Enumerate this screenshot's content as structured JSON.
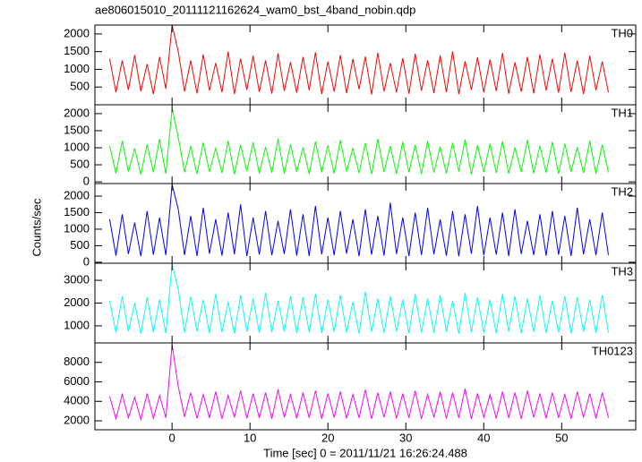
{
  "chart_data": {
    "type": "line",
    "title": "ae806015010_20111121162624_wam0_bst_4band_nobin.qdp",
    "xlabel": "Time [sec] 0 = 2011/11/21 16:26:24.488",
    "ylabel": "Counts/sec",
    "xlim": [
      -9.9,
      59.5
    ],
    "xticks": [
      0,
      10,
      20,
      30,
      40,
      50
    ],
    "x": [
      -8,
      -7.2,
      -6.4,
      -5.6,
      -4.8,
      -4,
      -3.2,
      -2.4,
      -1.6,
      -0.8,
      0,
      0.8,
      1.6,
      2.4,
      3.2,
      4,
      4.8,
      5.6,
      6.4,
      7.2,
      8,
      8.8,
      9.6,
      10.4,
      11.2,
      12,
      12.8,
      13.6,
      14.4,
      15.2,
      16,
      16.8,
      17.6,
      18.4,
      19.2,
      20,
      20.8,
      21.6,
      22.4,
      23.2,
      24,
      24.8,
      25.6,
      26.4,
      27.2,
      28,
      28.8,
      29.6,
      30.4,
      31.2,
      32,
      32.8,
      33.6,
      34.4,
      35.2,
      36,
      36.8,
      37.6,
      38.4,
      39.2,
      40,
      40.8,
      41.6,
      42.4,
      43.2,
      44,
      44.8,
      45.6,
      46.4,
      47.2,
      48,
      48.8,
      49.6,
      50.4,
      51.2,
      52,
      52.8,
      53.6,
      54.4,
      55.2,
      56
    ],
    "series": [
      {
        "name": "TH0",
        "color": "#ff0000",
        "ylim": [
          0,
          2250
        ],
        "yticks": [
          500,
          1000,
          1500,
          2000
        ],
        "values": [
          1300,
          350,
          1250,
          420,
          1400,
          380,
          1150,
          300,
          1350,
          450,
          2250,
          1500,
          380,
          1250,
          320,
          1420,
          400,
          1180,
          350,
          1500,
          300,
          1300,
          420,
          1380,
          360,
          1250,
          310,
          1450,
          390,
          1200,
          340,
          1350,
          410,
          1480,
          300,
          1220,
          370,
          1400,
          330,
          1290,
          440,
          1360,
          290,
          1470,
          380,
          1180,
          350,
          1320,
          310,
          1440,
          400,
          1260,
          330,
          1390,
          360,
          1510,
          300,
          1230,
          420,
          1340,
          350,
          1280,
          390,
          1460,
          310,
          1200,
          370,
          1350,
          320,
          1420,
          400,
          1300,
          340,
          1470,
          360,
          1250,
          300,
          1380,
          410,
          1220,
          350
        ]
      },
      {
        "name": "TH1",
        "color": "#00ff00",
        "ylim": [
          -50,
          2260
        ],
        "yticks": [
          0,
          500,
          1000,
          1500,
          2000
        ],
        "values": [
          1050,
          250,
          1200,
          300,
          980,
          220,
          1100,
          280,
          1250,
          240,
          2150,
          1300,
          280,
          1050,
          230,
          1150,
          300,
          990,
          260,
          1200,
          220,
          1080,
          310,
          1160,
          250,
          1020,
          270,
          1250,
          240,
          1100,
          290,
          1010,
          230,
          1180,
          280,
          1070,
          250,
          1220,
          300,
          990,
          260,
          1140,
          220,
          1260,
          290,
          1050,
          240,
          1170,
          280,
          1090,
          230,
          1200,
          270,
          1030,
          250,
          1150,
          300,
          1240,
          220,
          1080,
          280,
          1120,
          260,
          1190,
          240,
          1010,
          290,
          1230,
          250,
          1060,
          270,
          1170,
          230,
          1110,
          290,
          1020,
          260,
          1200,
          240,
          1090,
          280
        ]
      },
      {
        "name": "TH2",
        "color": "#0000ff",
        "ylim": [
          -30,
          2380
        ],
        "yticks": [
          0,
          500,
          1000,
          1500,
          2000
        ],
        "values": [
          1300,
          200,
          1450,
          250,
          1200,
          180,
          1550,
          230,
          1350,
          210,
          2350,
          1600,
          220,
          1400,
          190,
          1650,
          260,
          1300,
          200,
          1500,
          240,
          1750,
          180,
          1350,
          230,
          1550,
          210,
          1250,
          250,
          1600,
          200,
          1450,
          190,
          1700,
          240,
          1350,
          210,
          1550,
          260,
          1300,
          180,
          1600,
          230,
          1400,
          200,
          1800,
          250,
          1350,
          190,
          1500,
          220,
          1650,
          240,
          1300,
          200,
          1550,
          180,
          1450,
          260,
          1700,
          210,
          1350,
          230,
          1500,
          190,
          1600,
          250,
          1250,
          220,
          1450,
          200,
          1550,
          230,
          1400,
          190,
          1650,
          240,
          1300,
          210,
          1500,
          220
        ]
      },
      {
        "name": "TH3",
        "color": "#00ffff",
        "ylim": [
          250,
          3750
        ],
        "yticks": [
          1000,
          2000,
          3000
        ],
        "values": [
          2100,
          700,
          2300,
          750,
          2000,
          650,
          2250,
          720,
          2150,
          680,
          3700,
          2600,
          700,
          2300,
          750,
          2150,
          680,
          2400,
          720,
          2050,
          660,
          2350,
          740,
          2200,
          690,
          2450,
          710,
          2100,
          750,
          2300,
          670,
          2250,
          720,
          2400,
          680,
          2150,
          740,
          2350,
          700,
          2050,
          660,
          2500,
          730,
          2200,
          690,
          2300,
          750,
          2150,
          670,
          2400,
          710,
          2200,
          690,
          2350,
          740,
          2100,
          660,
          2450,
          720,
          2250,
          700,
          2150,
          680,
          2400,
          750,
          2300,
          670,
          2200,
          730,
          2350,
          690,
          2100,
          710,
          2300,
          660,
          2250,
          740,
          2150,
          690,
          2350,
          700
        ]
      },
      {
        "name": "TH0123",
        "color": "#ff00ff",
        "ylim": [
          1080,
          10000
        ],
        "yticks": [
          2000,
          4000,
          6000,
          8000
        ],
        "values": [
          4500,
          2200,
          4700,
          2300,
          4400,
          2150,
          4800,
          2250,
          4600,
          2300,
          9800,
          5500,
          2400,
          4900,
          2250,
          4700,
          2300,
          5000,
          2200,
          4600,
          2350,
          5100,
          2250,
          4800,
          2300,
          4900,
          2200,
          5200,
          2350,
          4700,
          2250,
          4900,
          2300,
          5100,
          2200,
          4800,
          2350,
          5000,
          2250,
          4700,
          2300,
          5200,
          2200,
          4900,
          2350,
          5000,
          2250,
          4800,
          2300,
          5100,
          2200,
          4700,
          2350,
          5000,
          2250,
          4900,
          2300,
          5300,
          2200,
          4800,
          2350,
          4700,
          2250,
          5000,
          2300,
          4900,
          2200,
          5100,
          2350,
          4800,
          2250,
          4900,
          2300,
          4700,
          2200,
          5000,
          2350,
          4800,
          2250,
          4900,
          2300
        ]
      }
    ]
  }
}
